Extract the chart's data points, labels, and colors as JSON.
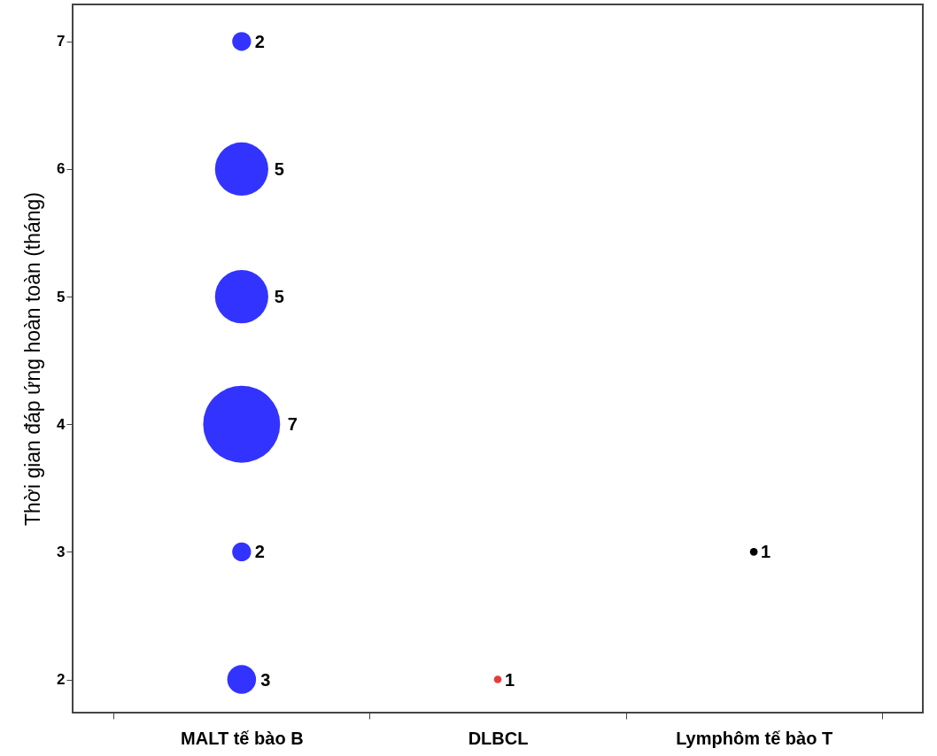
{
  "chart_data": {
    "type": "bubble",
    "ylabel": "Thời gian đáp ứng hoàn toàn (tháng)",
    "categories": [
      "MALT tế bào B",
      "DLBCL",
      "Lymphôm tế bào T"
    ],
    "ylim": [
      1.74,
      7.29
    ],
    "yticks": [
      2,
      3,
      4,
      5,
      6,
      7
    ],
    "grid": false,
    "series": [
      {
        "color": "#3333ff",
        "x": [
          "MALT tế bào B",
          "MALT tế bào B",
          "MALT tế bào B",
          "MALT tế bào B",
          "MALT tế bào B",
          "MALT tế bào B"
        ],
        "values": [
          7,
          6,
          5,
          4,
          3,
          2
        ],
        "sizes": [
          0.06,
          0.48,
          0.48,
          1,
          0.06,
          0.14
        ]
      },
      {
        "color": "#e83a3a",
        "x": [
          "DLBCL"
        ],
        "values": [
          2
        ],
        "sizes": [
          0.01
        ]
      },
      {
        "color": "#000000",
        "x": [
          "Lymphôm tế bào T"
        ],
        "values": [
          3
        ],
        "sizes": [
          0.01
        ]
      }
    ],
    "annotations": [
      {
        "text": "2",
        "x": "MALT tế bào B",
        "y": 7
      },
      {
        "text": "5",
        "x": "MALT tế bào B",
        "y": 6
      },
      {
        "text": "5",
        "x": "MALT tế bào B",
        "y": 5
      },
      {
        "text": "7",
        "x": "MALT tế bào B",
        "y": 4
      },
      {
        "text": "2",
        "x": "MALT tế bào B",
        "y": 3
      },
      {
        "text": "3",
        "x": "MALT tế bào B",
        "y": 2
      },
      {
        "text": "1",
        "x": "DLBCL",
        "y": 2
      },
      {
        "text": "1",
        "x": "Lymphôm tế bào T",
        "y": 3
      }
    ]
  }
}
